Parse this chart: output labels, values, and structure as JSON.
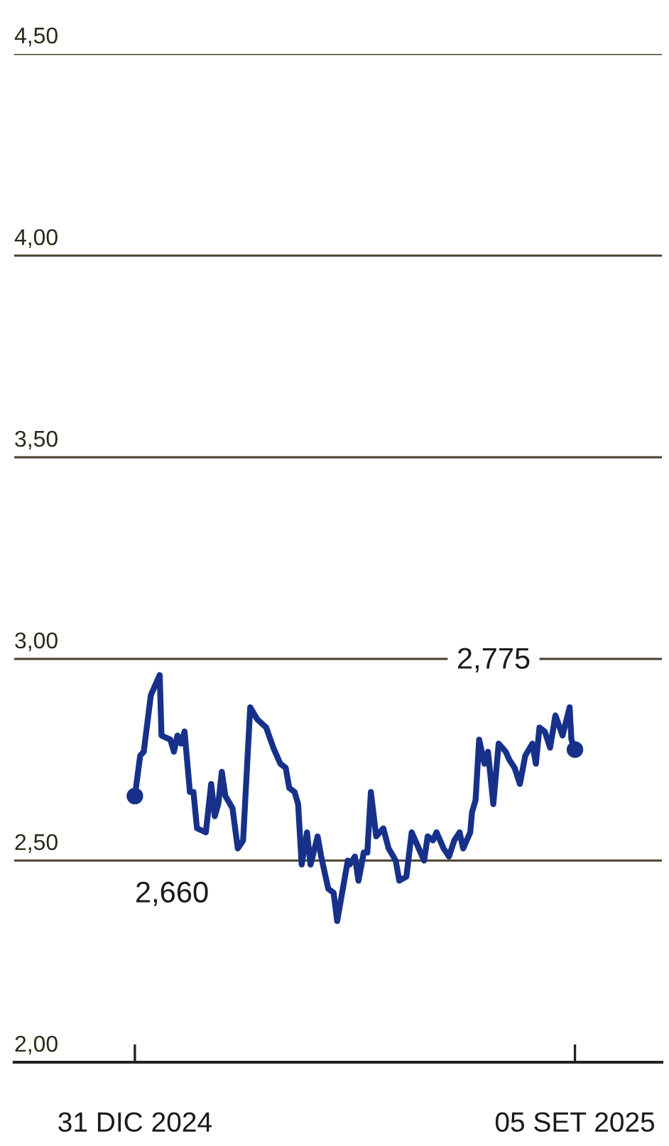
{
  "chart_data": {
    "type": "line",
    "x": [
      "2024-12-31",
      "2025-01-03",
      "2025-01-05",
      "2025-01-09",
      "2025-01-11",
      "2025-01-14",
      "2025-01-15",
      "2025-01-20",
      "2025-01-22",
      "2025-01-24",
      "2025-01-26",
      "2025-01-28",
      "2025-01-31",
      "2025-02-02",
      "2025-02-04",
      "2025-02-09",
      "2025-02-12",
      "2025-02-14",
      "2025-02-16",
      "2025-02-18",
      "2025-02-20",
      "2025-02-24",
      "2025-02-27",
      "2025-03-02",
      "2025-03-06",
      "2025-03-10",
      "2025-03-15",
      "2025-03-19",
      "2025-03-23",
      "2025-03-26",
      "2025-03-28",
      "2025-03-31",
      "2025-04-02",
      "2025-04-04",
      "2025-04-07",
      "2025-04-09",
      "2025-04-13",
      "2025-04-15",
      "2025-04-19",
      "2025-04-22",
      "2025-04-24",
      "2025-04-28",
      "2025-04-30",
      "2025-05-01",
      "2025-05-04",
      "2025-05-06",
      "2025-05-09",
      "2025-05-11",
      "2025-05-13",
      "2025-05-16",
      "2025-05-20",
      "2025-05-23",
      "2025-05-27",
      "2025-05-29",
      "2025-06-02",
      "2025-06-05",
      "2025-06-08",
      "2025-06-12",
      "2025-06-14",
      "2025-06-17",
      "2025-06-19",
      "2025-06-23",
      "2025-06-26",
      "2025-06-29",
      "2025-07-02",
      "2025-07-04",
      "2025-07-08",
      "2025-07-09",
      "2025-07-11",
      "2025-07-13",
      "2025-07-16",
      "2025-07-18",
      "2025-07-21",
      "2025-07-24",
      "2025-07-28",
      "2025-07-30",
      "2025-08-02",
      "2025-08-05",
      "2025-08-08",
      "2025-08-12",
      "2025-08-14",
      "2025-08-16",
      "2025-08-19",
      "2025-08-22",
      "2025-08-25",
      "2025-08-29",
      "2025-09-02",
      "2025-09-03",
      "2025-09-05"
    ],
    "series": [
      {
        "color": "#17318a",
        "values": [
          2.66,
          2.76,
          2.77,
          2.91,
          2.93,
          2.96,
          2.81,
          2.8,
          2.77,
          2.81,
          2.79,
          2.82,
          2.67,
          2.67,
          2.58,
          2.57,
          2.69,
          2.61,
          2.64,
          2.72,
          2.66,
          2.63,
          2.53,
          2.55,
          2.88,
          2.85,
          2.83,
          2.78,
          2.74,
          2.73,
          2.68,
          2.67,
          2.64,
          2.49,
          2.57,
          2.49,
          2.56,
          2.51,
          2.43,
          2.42,
          2.35,
          2.45,
          2.5,
          2.49,
          2.51,
          2.45,
          2.52,
          2.52,
          2.67,
          2.56,
          2.58,
          2.53,
          2.5,
          2.45,
          2.46,
          2.57,
          2.54,
          2.5,
          2.56,
          2.55,
          2.57,
          2.53,
          2.51,
          2.55,
          2.57,
          2.53,
          2.57,
          2.62,
          2.65,
          2.8,
          2.74,
          2.77,
          2.64,
          2.79,
          2.77,
          2.75,
          2.73,
          2.69,
          2.76,
          2.79,
          2.74,
          2.83,
          2.82,
          2.78,
          2.86,
          2.81,
          2.88,
          2.8,
          2.775
        ]
      },
      {
        "type": "scatter",
        "color": "#17318a",
        "x": [
          "2024-12-31",
          "2025-09-05"
        ],
        "values": [
          2.66,
          2.775
        ]
      }
    ],
    "xlim": [
      "2024-10-24",
      "2025-10-24"
    ],
    "xticks": [
      {
        "value": "2024-12-31",
        "label": "31 DIC 2024"
      },
      {
        "value": "2025-09-05",
        "label": "05 SET 2025"
      }
    ],
    "ylim": [
      2.0,
      4.5
    ],
    "yticks": [
      {
        "value": 2.0,
        "label": "2,00"
      },
      {
        "value": 2.5,
        "label": "2,50"
      },
      {
        "value": 3.0,
        "label": "3,00"
      },
      {
        "value": 3.5,
        "label": "3,50"
      },
      {
        "value": 4.0,
        "label": "4,00"
      },
      {
        "value": 4.5,
        "label": "4,50"
      }
    ],
    "grid": "y",
    "line_style": "solid",
    "annotations": [
      "2,660",
      "2,775"
    ]
  }
}
